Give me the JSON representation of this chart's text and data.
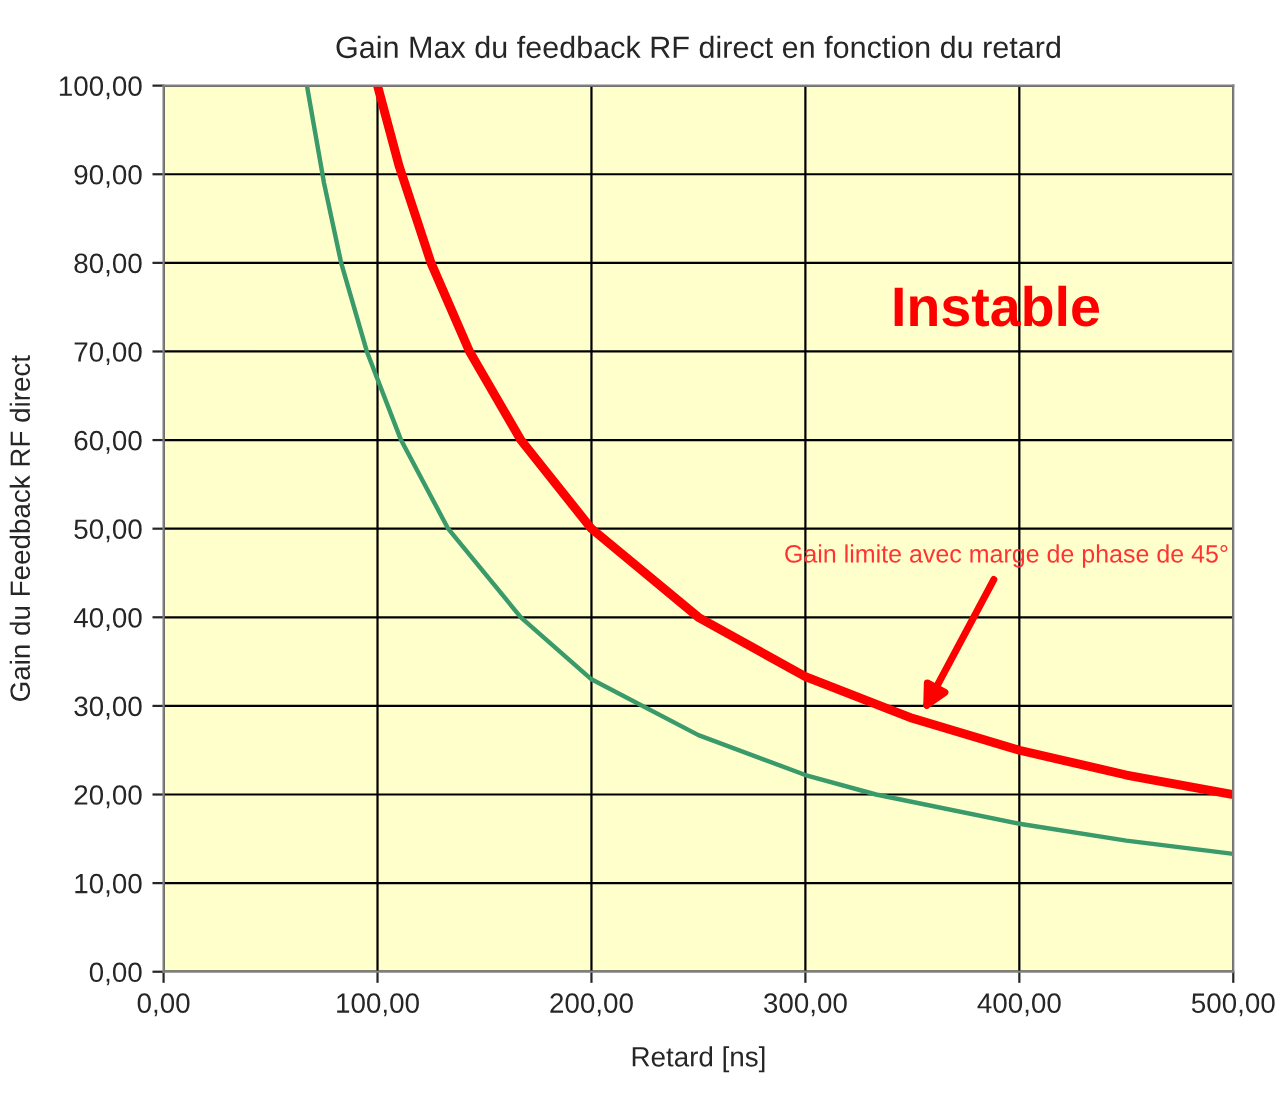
{
  "chart_data": {
    "type": "line",
    "title": "Gain Max du feedback RF direct en fonction du retard",
    "xlabel": "Retard [ns]",
    "ylabel": "Gain du Feedback RF direct",
    "series": [
      {
        "color": "#ff0000",
        "x": [
          100,
          110,
          125,
          143,
          167,
          200,
          250,
          300,
          350,
          400,
          450,
          500
        ],
        "values": [
          100,
          91,
          80,
          70,
          60,
          50,
          40,
          33.3,
          28.6,
          25,
          22.2,
          20
        ]
      },
      {
        "color": "#3a9a6a",
        "x": [
          67,
          75,
          83,
          95,
          111,
          133,
          167,
          200,
          250,
          300,
          333,
          400,
          450,
          500
        ],
        "values": [
          100,
          89,
          80,
          70,
          60,
          50,
          40,
          33,
          26.7,
          22.2,
          20,
          16.7,
          14.8,
          13.3
        ]
      }
    ],
    "xlim": [
      0,
      500
    ],
    "ylim": [
      0,
      100
    ],
    "xticks": [
      {
        "value": 0,
        "label": "0,00"
      },
      {
        "value": 100,
        "label": "100,00"
      },
      {
        "value": 200,
        "label": "200,00"
      },
      {
        "value": 300,
        "label": "300,00"
      },
      {
        "value": 400,
        "label": "400,00"
      },
      {
        "value": 500,
        "label": "500,00"
      }
    ],
    "yticks": [
      {
        "value": 0,
        "label": "0,00"
      },
      {
        "value": 10,
        "label": "10,00"
      },
      {
        "value": 20,
        "label": "20,00"
      },
      {
        "value": 30,
        "label": "30,00"
      },
      {
        "value": 40,
        "label": "40,00"
      },
      {
        "value": 50,
        "label": "50,00"
      },
      {
        "value": 60,
        "label": "60,00"
      },
      {
        "value": 70,
        "label": "70,00"
      },
      {
        "value": 80,
        "label": "80,00"
      },
      {
        "value": 90,
        "label": "90,00"
      },
      {
        "value": 100,
        "label": "100,00"
      }
    ],
    "grid": true,
    "legend": false,
    "marker": "none",
    "line_style": "solid",
    "annotations": [
      "Instable",
      {
        "text": "Gain limite avec marge de phase de 45°",
        "x": 355,
        "y": 29.3
      }
    ]
  }
}
